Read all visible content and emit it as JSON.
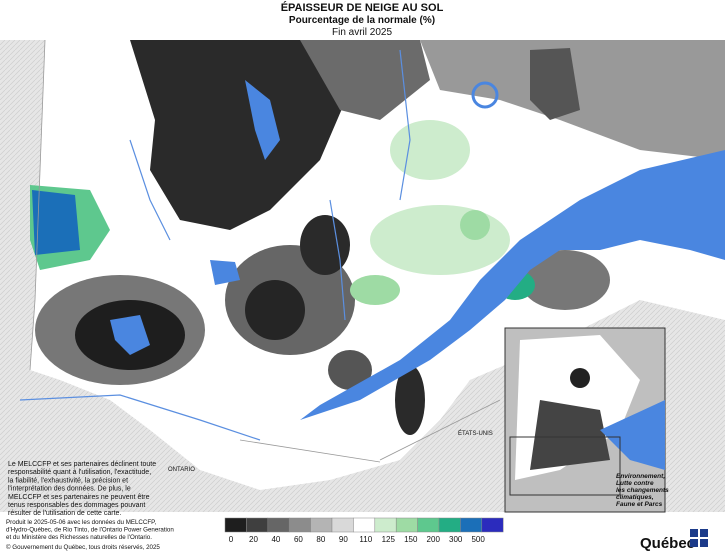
{
  "header": {
    "title": "ÉPAISSEUR DE NEIGE AU SOL",
    "subtitle": "Pourcentage de la normale (%)",
    "date": "Fin avril 2025"
  },
  "map_labels": {
    "ontario": "ONTARIO",
    "usa": "ÉTATS-UNIS"
  },
  "disclaimer": [
    "Le MELCCFP et ses partenaires déclinent toute",
    "responsabilité quant à l'utilisation, l'exactitude,",
    "la fiabilité, l'exhaustivité, la précision et",
    "l'interprétation des données. De plus, le",
    "MELCCFP et ses partenaires ne peuvent être",
    "tenus responsables des dommages pouvant",
    "résulter de l'utilisation de cette carte."
  ],
  "footer": {
    "source": [
      "Produit le 2025-05-06 avec les données du MELCCFP,",
      "d'Hydro-Québec, de Rio Tinto, de l'Ontario Power Generation",
      "et du Ministère des Richesses naturelles de l'Ontario."
    ],
    "copyright": "© Gouvernement du Québec, tous droits réservés, 2025"
  },
  "legend": {
    "colors": [
      "#1e1e1e",
      "#3f3f3f",
      "#666666",
      "#8c8c8c",
      "#b4b4b4",
      "#d9d9d9",
      "#ffffff",
      "#cdeccd",
      "#9edba4",
      "#5ec88e",
      "#23ad84",
      "#1b6fb8",
      "#2b2bbd"
    ],
    "labels": [
      "0",
      "20",
      "40",
      "60",
      "80",
      "90",
      "110",
      "125",
      "150",
      "200",
      "300",
      "500"
    ]
  },
  "logo": {
    "ministry": [
      "Environnement,",
      "Lutte contre",
      "les changements",
      "climatiques,",
      "Faune et Parcs"
    ],
    "name": "Québec"
  }
}
